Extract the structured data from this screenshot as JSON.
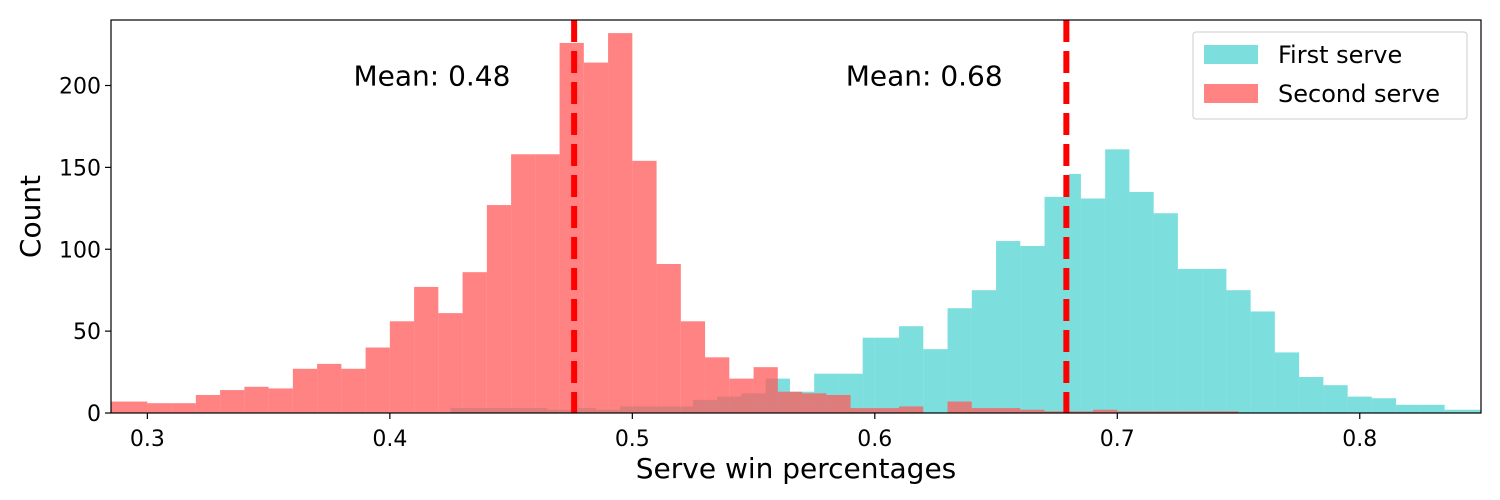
{
  "chart_data": {
    "type": "histogram",
    "title": "",
    "xlabel": "Serve win percentages",
    "ylabel": "Count",
    "xlim": [
      0.285,
      0.85
    ],
    "ylim": [
      0,
      240
    ],
    "xticks": [
      0.3,
      0.4,
      0.5,
      0.6,
      0.7,
      0.8
    ],
    "xtick_labels": [
      "0.3",
      "0.4",
      "0.5",
      "0.6",
      "0.7",
      "0.8"
    ],
    "yticks": [
      0,
      50,
      100,
      150,
      200
    ],
    "ytick_labels": [
      "0",
      "50",
      "100",
      "150",
      "200"
    ],
    "grid": false,
    "legend_position": "top-right",
    "series": [
      {
        "name": "First serve",
        "color": "#40cfcf",
        "opacity": 0.68,
        "bins": [
          [
            0.425,
            0.435,
            3
          ],
          [
            0.435,
            0.445,
            3
          ],
          [
            0.445,
            0.455,
            3
          ],
          [
            0.455,
            0.465,
            3
          ],
          [
            0.465,
            0.475,
            2
          ],
          [
            0.475,
            0.485,
            3
          ],
          [
            0.485,
            0.495,
            2
          ],
          [
            0.495,
            0.505,
            4
          ],
          [
            0.505,
            0.515,
            4
          ],
          [
            0.515,
            0.525,
            4
          ],
          [
            0.525,
            0.535,
            8
          ],
          [
            0.535,
            0.545,
            10
          ],
          [
            0.545,
            0.555,
            12
          ],
          [
            0.555,
            0.565,
            21
          ],
          [
            0.565,
            0.575,
            13
          ],
          [
            0.575,
            0.585,
            24
          ],
          [
            0.585,
            0.595,
            24
          ],
          [
            0.595,
            0.6,
            46
          ],
          [
            0.6,
            0.61,
            46
          ],
          [
            0.61,
            0.62,
            53
          ],
          [
            0.62,
            0.63,
            39
          ],
          [
            0.63,
            0.64,
            64
          ],
          [
            0.64,
            0.65,
            75
          ],
          [
            0.65,
            0.66,
            105
          ],
          [
            0.66,
            0.67,
            102
          ],
          [
            0.67,
            0.68,
            132
          ],
          [
            0.68,
            0.685,
            146
          ],
          [
            0.685,
            0.695,
            131
          ],
          [
            0.695,
            0.705,
            161
          ],
          [
            0.705,
            0.715,
            135
          ],
          [
            0.715,
            0.725,
            122
          ],
          [
            0.725,
            0.735,
            88
          ],
          [
            0.735,
            0.745,
            88
          ],
          [
            0.745,
            0.755,
            75
          ],
          [
            0.755,
            0.765,
            62
          ],
          [
            0.765,
            0.775,
            37
          ],
          [
            0.775,
            0.785,
            22
          ],
          [
            0.785,
            0.795,
            17
          ],
          [
            0.795,
            0.805,
            10
          ],
          [
            0.805,
            0.815,
            9
          ],
          [
            0.815,
            0.825,
            5
          ],
          [
            0.825,
            0.835,
            5
          ],
          [
            0.835,
            0.85,
            2
          ]
        ]
      },
      {
        "name": "Second serve",
        "color": "#ff5a5a",
        "opacity": 0.75,
        "bins": [
          [
            0.285,
            0.3,
            7
          ],
          [
            0.3,
            0.31,
            6
          ],
          [
            0.31,
            0.32,
            6
          ],
          [
            0.32,
            0.33,
            11
          ],
          [
            0.33,
            0.34,
            14
          ],
          [
            0.34,
            0.35,
            16
          ],
          [
            0.35,
            0.36,
            15
          ],
          [
            0.36,
            0.37,
            27
          ],
          [
            0.37,
            0.38,
            30
          ],
          [
            0.38,
            0.39,
            27
          ],
          [
            0.39,
            0.4,
            40
          ],
          [
            0.4,
            0.41,
            56
          ],
          [
            0.41,
            0.42,
            77
          ],
          [
            0.42,
            0.43,
            61
          ],
          [
            0.43,
            0.44,
            86
          ],
          [
            0.44,
            0.45,
            127
          ],
          [
            0.45,
            0.46,
            158
          ],
          [
            0.46,
            0.47,
            158
          ],
          [
            0.47,
            0.48,
            226
          ],
          [
            0.48,
            0.49,
            214
          ],
          [
            0.49,
            0.5,
            232
          ],
          [
            0.5,
            0.51,
            154
          ],
          [
            0.51,
            0.52,
            91
          ],
          [
            0.52,
            0.53,
            56
          ],
          [
            0.53,
            0.54,
            34
          ],
          [
            0.54,
            0.55,
            21
          ],
          [
            0.55,
            0.56,
            28
          ],
          [
            0.56,
            0.57,
            13
          ],
          [
            0.57,
            0.58,
            12
          ],
          [
            0.58,
            0.59,
            11
          ],
          [
            0.59,
            0.6,
            3
          ],
          [
            0.6,
            0.61,
            3
          ],
          [
            0.61,
            0.62,
            4
          ],
          [
            0.62,
            0.63,
            0
          ],
          [
            0.63,
            0.64,
            7
          ],
          [
            0.64,
            0.65,
            3
          ],
          [
            0.65,
            0.66,
            3
          ],
          [
            0.66,
            0.67,
            2
          ],
          [
            0.67,
            0.68,
            1
          ],
          [
            0.68,
            0.69,
            1
          ],
          [
            0.69,
            0.7,
            2
          ],
          [
            0.7,
            0.75,
            1
          ]
        ]
      }
    ],
    "vlines": [
      {
        "x": 0.476,
        "color": "#ff0000",
        "style": "dashed"
      },
      {
        "x": 0.679,
        "color": "#ff0000",
        "style": "dashed"
      }
    ],
    "annotations": [
      {
        "text": "Mean: 0.48",
        "x": 0.385,
        "y": 200
      },
      {
        "text": "Mean: 0.68",
        "x": 0.588,
        "y": 200
      }
    ]
  }
}
